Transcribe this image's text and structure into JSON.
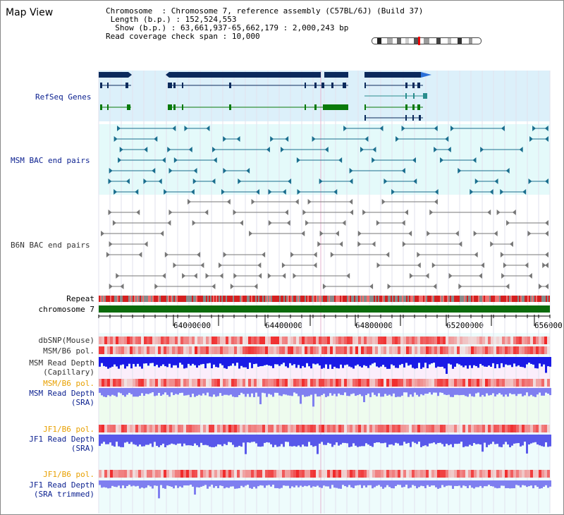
{
  "title": "Map View",
  "info": {
    "chromosome_label": "Chromosome",
    "chromosome_value": "Chromosome 7, reference assembly (C57BL/6J) (Build 37)",
    "length_label": "Length (b.p.)",
    "length_value": "152,524,553",
    "show_label": "Show (b.p.)",
    "show_value": "63,661,937-65,662,179 : 2,000,243 bp",
    "span_label": "Read coverage check span",
    "span_value": "10,000"
  },
  "tracks": {
    "refseq": "RefSeq Genes",
    "msm_bac": "MSM BAC end pairs",
    "b6n_bac": "B6N BAC end pairs",
    "repeat": "Repeat",
    "chromosome": "chromosome 7",
    "dbsnp": "dbSNP(Mouse)",
    "msm_b6_pol_1": "MSM/B6 pol.",
    "msm_depth_cap_1": "MSM Read Depth",
    "msm_depth_cap_2": "(Capillary)",
    "msm_b6_pol_2": "MSM/B6 pol.",
    "msm_depth_sra_1": "MSM Read Depth",
    "msm_depth_sra_2": "(SRA)",
    "jf1_b6_pol_1": "JF1/B6 pol.",
    "jf1_depth_sra_1": "JF1 Read Depth",
    "jf1_depth_sra_2": "(SRA)",
    "jf1_b6_pol_2": "JF1/B6 pol.",
    "jf1_depth_trim_1": "JF1 Read Depth",
    "jf1_depth_trim_2": "(SRA trimmed)"
  },
  "axis_ticks": [
    "64000000",
    "64400000",
    "64800000",
    "65200000",
    "656000"
  ],
  "colors": {
    "refseq_bg": "#dcf0fa",
    "msm_bg": "#e4fafa",
    "gene_dark": "#0b2a5c",
    "gene_green": "#0a7a0a",
    "chromosome": "#0b6b0b",
    "msm_feature": "#1a6e8e",
    "b6n_feature": "#777777",
    "depth_blue": "#1a1ae6",
    "depth_light": "#7f7ff0",
    "snp_red": "#f03a3a"
  }
}
